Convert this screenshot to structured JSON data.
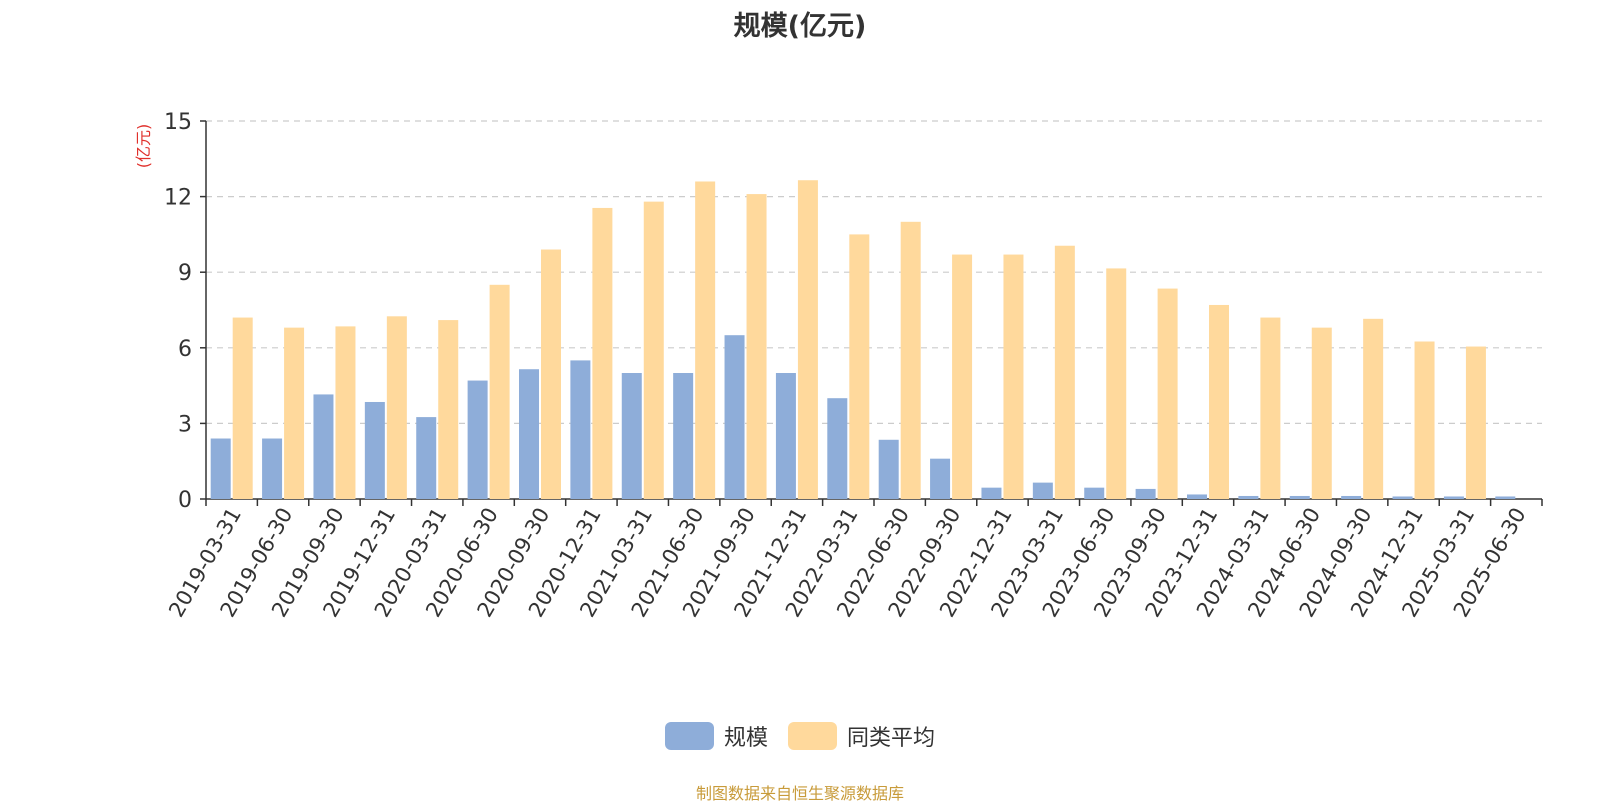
{
  "chart_data": {
    "type": "bar",
    "title": "规模(亿元)",
    "ylabel": "(亿元)",
    "ylim": [
      0,
      15
    ],
    "yticks": [
      0,
      3,
      6,
      9,
      12,
      15
    ],
    "grid": true,
    "legend_position": "bottom",
    "categories": [
      "2019-03-31",
      "2019-06-30",
      "2019-09-30",
      "2019-12-31",
      "2020-03-31",
      "2020-06-30",
      "2020-09-30",
      "2020-12-31",
      "2021-03-31",
      "2021-06-30",
      "2021-09-30",
      "2021-12-31",
      "2022-03-31",
      "2022-06-30",
      "2022-09-30",
      "2022-12-31",
      "2023-03-31",
      "2023-06-30",
      "2023-09-30",
      "2023-12-31",
      "2024-03-31",
      "2024-06-30",
      "2024-09-30",
      "2024-12-31",
      "2025-03-31",
      "2025-06-30"
    ],
    "series": [
      {
        "name": "规模",
        "color": "#8eadd9",
        "values": [
          2.4,
          2.4,
          4.15,
          3.85,
          3.25,
          4.7,
          5.15,
          5.5,
          5.0,
          5.0,
          6.5,
          5.0,
          4.0,
          2.35,
          1.6,
          0.45,
          0.65,
          0.45,
          0.4,
          0.18,
          0.12,
          0.12,
          0.12,
          0.1,
          0.1,
          0.1
        ]
      },
      {
        "name": "同类平均",
        "color": "#ffd99c",
        "values": [
          7.2,
          6.8,
          6.85,
          7.25,
          7.1,
          8.5,
          9.9,
          11.55,
          11.8,
          12.6,
          12.1,
          12.65,
          10.5,
          11.0,
          9.7,
          9.7,
          10.05,
          9.15,
          8.35,
          7.7,
          7.2,
          6.8,
          7.15,
          6.25,
          6.05,
          null
        ]
      }
    ]
  },
  "legend": {
    "items": [
      {
        "label": "规模",
        "color": "#8eadd9"
      },
      {
        "label": "同类平均",
        "color": "#ffd99c"
      }
    ]
  },
  "source_note": "制图数据来自恒生聚源数据库",
  "colors": {
    "axis": "#333333",
    "grid": "#cccccc",
    "ylabel": "#e0302b"
  }
}
